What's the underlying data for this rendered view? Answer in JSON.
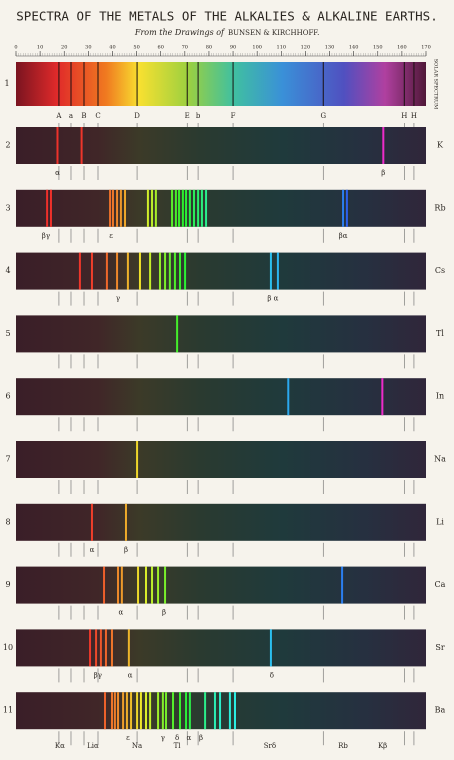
{
  "header": {
    "title": "SPECTRA OF THE METALS OF THE ALKALIES & ALKALINE EARTHS.",
    "subtitle_prefix": "From the Drawings of",
    "subtitle_names": "BUNSEN & KIRCHHOFF."
  },
  "scale": {
    "ticks": [
      0,
      10,
      20,
      30,
      40,
      50,
      60,
      70,
      80,
      90,
      100,
      110,
      120,
      130,
      140,
      150,
      160,
      170
    ]
  },
  "solar": {
    "number": "1",
    "label": "SOLAR SPECTRUM",
    "lines": [
      {
        "label": "A",
        "position": 17.8
      },
      {
        "label": "a",
        "position": 22.8
      },
      {
        "label": "B",
        "position": 28.2
      },
      {
        "label": "C",
        "position": 34
      },
      {
        "label": "D",
        "position": 50.2
      },
      {
        "label": "E",
        "position": 71
      },
      {
        "label": "b",
        "position": 75.5
      },
      {
        "label": "F",
        "position": 90
      },
      {
        "label": "G",
        "position": 127.4
      },
      {
        "label": "H",
        "position": 161
      },
      {
        "label": "H",
        "position": 165
      }
    ]
  },
  "spectra": [
    {
      "number": "2",
      "element": "K",
      "lines": [
        17.2,
        27.2,
        152.3
      ],
      "labels": [
        {
          "text": "α",
          "position": 17.2
        },
        {
          "text": "β",
          "position": 152.3
        }
      ]
    },
    {
      "number": "3",
      "element": "Rb",
      "lines": [
        12.9,
        14.5,
        39,
        40.2,
        41.9,
        43.5,
        45.2,
        54.7,
        56.4,
        58,
        64.7,
        66.3,
        67.6,
        69.2,
        70.5,
        72.1,
        73.8,
        75.5,
        77.1,
        78.8,
        135.6,
        137.2
      ],
      "labels": [
        {
          "text": "βγ",
          "position": 12.4
        },
        {
          "text": "ε",
          "position": 39.4
        },
        {
          "text": "βα",
          "position": 135.6
        }
      ]
    },
    {
      "number": "4",
      "element": "Cs",
      "lines": [
        26.5,
        31.5,
        37.7,
        41.9,
        46.4,
        51.4,
        55.6,
        59.7,
        61.8,
        63.8,
        65.9,
        68,
        70.1,
        105.7,
        108.6
      ],
      "labels": [
        {
          "text": "γ",
          "position": 42.3
        },
        {
          "text": "β α",
          "position": 106.5
        }
      ]
    },
    {
      "number": "5",
      "element": "Tl",
      "lines": [
        66.8
      ],
      "labels": []
    },
    {
      "number": "6",
      "element": "In",
      "lines": [
        112.9,
        151.9
      ],
      "labels": []
    },
    {
      "number": "7",
      "element": "Na",
      "lines": [
        50.2
      ],
      "labels": []
    },
    {
      "number": "8",
      "element": "Li",
      "lines": [
        31.5,
        45.6
      ],
      "labels": [
        {
          "text": "α",
          "position": 31.5
        },
        {
          "text": "β",
          "position": 45.6
        }
      ]
    },
    {
      "number": "9",
      "element": "Ca",
      "lines": [
        36.5,
        42.3,
        43.9,
        50.6,
        53.9,
        56.4,
        58.9,
        61.8,
        135.2
      ],
      "labels": [
        {
          "text": "α",
          "position": 43.5
        },
        {
          "text": "β",
          "position": 61.4
        }
      ]
    },
    {
      "number": "10",
      "element": "Sr",
      "lines": [
        30.7,
        33.2,
        35.2,
        37.3,
        39.8,
        46.8,
        105.7
      ],
      "labels": [
        {
          "text": "βγ",
          "position": 33.9
        },
        {
          "text": "α",
          "position": 47.3
        },
        {
          "text": "δ",
          "position": 106.1
        }
      ]
    },
    {
      "number": "11",
      "element": "Ba",
      "lines": [
        36.9,
        39.8,
        41,
        42.3,
        44.4,
        46,
        47.7,
        50.2,
        51.8,
        53.9,
        55.6,
        58.9,
        60.9,
        62.2,
        65.1,
        68,
        70.5,
        72.1,
        78.4,
        82.5,
        84.6,
        88.7,
        90.8
      ],
      "labels": [
        {
          "text": "ε",
          "position": 46.4
        },
        {
          "text": "γ",
          "position": 60.9
        },
        {
          "text": "δ",
          "position": 66.8
        },
        {
          "text": "α",
          "position": 71.7
        },
        {
          "text": "β",
          "position": 76.7
        }
      ]
    }
  ],
  "footer": {
    "labels": [
      {
        "text": "Kα",
        "position": 18.2
      },
      {
        "text": "Liα",
        "position": 31.9
      },
      {
        "text": "Na",
        "position": 50.2
      },
      {
        "text": "Tl",
        "position": 66.8
      },
      {
        "text": "Srδ",
        "position": 105.3
      },
      {
        "text": "Rb",
        "position": 135.6
      },
      {
        "text": "Kβ",
        "position": 152
      }
    ]
  }
}
